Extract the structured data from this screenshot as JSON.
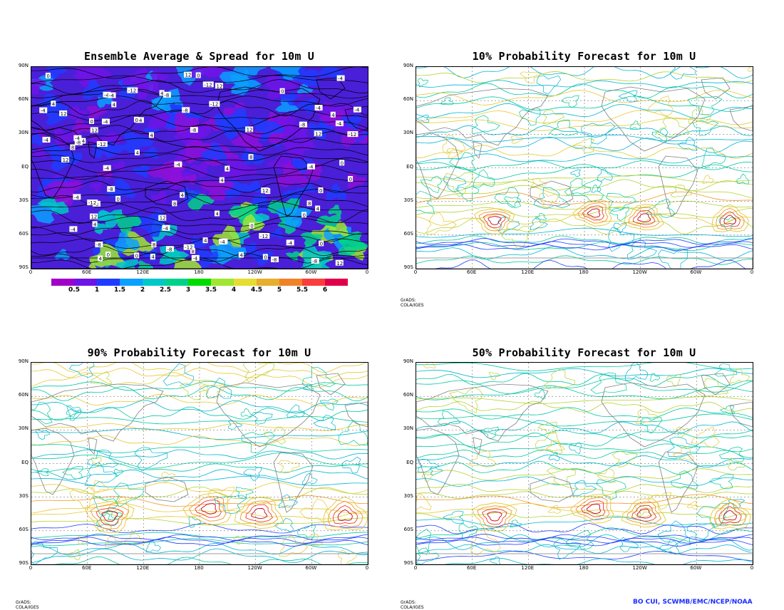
{
  "panels": {
    "top_left": {
      "title": "Ensemble Average & Spread for 10m U"
    },
    "top_right": {
      "title": "10% Probability Forecast for 10m U",
      "credit": "GrADS: COLA/IGES"
    },
    "bottom_left": {
      "title": "90% Probability Forecast for 10m U",
      "credit": "GrADS: COLA/IGES"
    },
    "bottom_right": {
      "title": "50% Probability Forecast for 10m U",
      "credit": "GrADS: COLA/IGES"
    }
  },
  "axes": {
    "lat_labels": [
      "90N",
      "60N",
      "30N",
      "EQ",
      "30S",
      "60S",
      "90S"
    ],
    "lon_labels": [
      "0",
      "60E",
      "120E",
      "180",
      "120W",
      "60W",
      "0"
    ]
  },
  "colorbar": {
    "labels": [
      "0.5",
      "1",
      "1.5",
      "2",
      "2.5",
      "3",
      "3.5",
      "4",
      "4.5",
      "5",
      "5.5",
      "6"
    ],
    "colors": [
      "#a000c8",
      "#6e14e6",
      "#1e3cff",
      "#0aa0ff",
      "#00c8c8",
      "#00d28c",
      "#00dc00",
      "#a0e632",
      "#e6dc32",
      "#e6af2d",
      "#f08228",
      "#fa3c3c",
      "#e0004a"
    ]
  },
  "author": "BO CUI, SCWMB/EMC/NCEP/NOAA",
  "contour_colors": {
    "blue": "#1e3cff",
    "cyan": "#00b4d2",
    "teal": "#00c8a0",
    "yellowgreen": "#b4d232",
    "yellow": "#e6c832",
    "orange": "#f09628",
    "red": "#f03c28",
    "darkred": "#c8001e",
    "coast": "#7f7f7f"
  }
}
